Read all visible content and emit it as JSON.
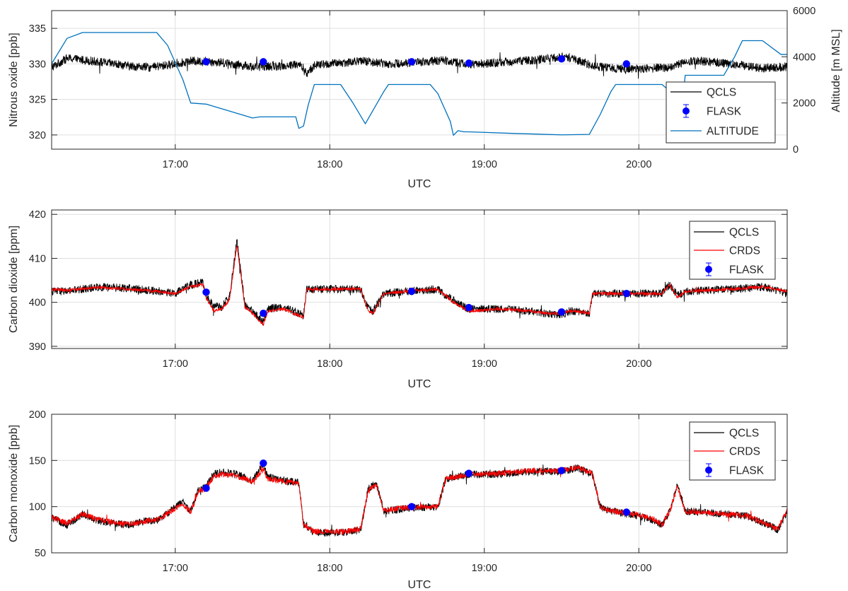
{
  "chart_data": [
    {
      "type": "line",
      "xlabel": "UTC",
      "ylabel": "Nitrous oxide [ppb]",
      "y2label": "Altitude [m MSL]",
      "xlim": [
        16.2,
        20.96
      ],
      "ylim": [
        318,
        337.5
      ],
      "y2lim": [
        0,
        6000
      ],
      "xticks": [
        "17:00",
        "18:00",
        "19:00",
        "20:00"
      ],
      "yticks": [
        "320",
        "325",
        "330",
        "335"
      ],
      "y2ticks": [
        "0",
        "2000",
        "4000",
        "6000"
      ],
      "grid": true,
      "legend": "bottom-right",
      "legend_entries": [
        "QCLS",
        "FLASK",
        "ALTITUDE"
      ],
      "series": [
        {
          "name": "QCLS",
          "color": "#000000",
          "noise": 0.6,
          "x": [
            16.2,
            16.3,
            16.5,
            16.7,
            16.85,
            17.0,
            17.1,
            17.2,
            17.3,
            17.5,
            17.7,
            17.8,
            17.85,
            17.9,
            18.0,
            18.2,
            18.4,
            18.6,
            18.75,
            18.9,
            19.1,
            19.3,
            19.5,
            19.6,
            19.7,
            19.8,
            20.0,
            20.2,
            20.3,
            20.4,
            20.6,
            20.8,
            20.96
          ],
          "y": [
            329.5,
            330.8,
            330.3,
            329.7,
            329.5,
            330.0,
            330.4,
            330.3,
            330.2,
            329.6,
            329.7,
            330.0,
            328.6,
            329.8,
            330.0,
            330.4,
            330.0,
            330.3,
            330.5,
            329.9,
            330.2,
            330.5,
            331.0,
            330.5,
            329.8,
            329.4,
            329.3,
            329.5,
            330.3,
            330.4,
            330.0,
            329.4,
            329.6
          ]
        },
        {
          "name": "ALTITUDE",
          "color": "#0072bd",
          "axis": "right",
          "x": [
            16.2,
            16.3,
            16.4,
            16.88,
            16.95,
            17.05,
            17.1,
            17.2,
            17.5,
            17.55,
            17.78,
            17.8,
            17.83,
            17.86,
            17.9,
            18.07,
            18.15,
            18.23,
            18.35,
            18.38,
            18.65,
            18.7,
            18.78,
            18.8,
            18.83,
            18.87,
            18.9,
            19.2,
            19.5,
            19.68,
            19.75,
            19.82,
            19.85,
            20.15,
            20.22,
            20.28,
            20.3,
            20.55,
            20.62,
            20.67,
            20.8,
            20.92,
            20.96
          ],
          "y": [
            3700,
            4800,
            5050,
            5050,
            4500,
            3000,
            2000,
            1950,
            1350,
            1400,
            1400,
            900,
            1000,
            1900,
            2800,
            2800,
            2000,
            1100,
            2500,
            2800,
            2800,
            2400,
            1200,
            600,
            800,
            750,
            750,
            680,
            620,
            640,
            1500,
            2500,
            2800,
            2800,
            2400,
            1800,
            3200,
            3200,
            4000,
            4700,
            4700,
            4100,
            4100
          ]
        },
        {
          "name": "FLASK",
          "color": "#0000ff",
          "marker": "circle",
          "x": [
            17.2,
            17.57,
            18.53,
            18.9,
            19.5,
            19.92
          ],
          "y": [
            330.3,
            330.3,
            330.3,
            330.1,
            330.7,
            330.0
          ]
        }
      ]
    },
    {
      "type": "line",
      "xlabel": "UTC",
      "ylabel": "Carbon dioxide [ppm]",
      "xlim": [
        16.2,
        20.96
      ],
      "ylim": [
        389.5,
        421
      ],
      "xticks": [
        "17:00",
        "18:00",
        "19:00",
        "20:00"
      ],
      "yticks": [
        "390",
        "400",
        "410",
        "420"
      ],
      "grid": true,
      "legend": "top-right",
      "legend_entries": [
        "QCLS",
        "CRDS",
        "FLASK"
      ],
      "series": [
        {
          "name": "QCLS",
          "color": "#000000",
          "noise": 0.9,
          "x": [
            16.2,
            16.3,
            16.5,
            16.7,
            16.9,
            17.0,
            17.1,
            17.18,
            17.2,
            17.25,
            17.3,
            17.35,
            17.4,
            17.45,
            17.5,
            17.57,
            17.6,
            17.7,
            17.8,
            17.83,
            17.85,
            18.0,
            18.2,
            18.25,
            18.28,
            18.35,
            18.5,
            18.7,
            18.75,
            18.8,
            18.85,
            18.9,
            19.1,
            19.3,
            19.4,
            19.5,
            19.55,
            19.6,
            19.68,
            19.7,
            19.8,
            20.0,
            20.15,
            20.2,
            20.25,
            20.3,
            20.6,
            20.8,
            20.96
          ],
          "y": [
            402.5,
            402.5,
            403.5,
            403.2,
            402.5,
            402.0,
            404.0,
            404.5,
            401.5,
            399.0,
            399.0,
            401.0,
            414.0,
            399.5,
            398.0,
            395.5,
            398.5,
            399.0,
            397.5,
            397.0,
            403.0,
            403.0,
            403.0,
            398.5,
            398.0,
            402.0,
            402.5,
            403.0,
            401.5,
            400.5,
            399.5,
            398.5,
            398.5,
            398.0,
            397.5,
            397.0,
            398.0,
            398.0,
            397.5,
            402.0,
            402.0,
            402.0,
            402.0,
            404.0,
            401.5,
            402.5,
            403.0,
            403.5,
            402.0
          ]
        },
        {
          "name": "CRDS",
          "color": "#ff0000",
          "noise": 0.35,
          "x": [
            16.2,
            16.3,
            16.5,
            16.7,
            16.9,
            17.0,
            17.1,
            17.18,
            17.2,
            17.25,
            17.3,
            17.35,
            17.4,
            17.45,
            17.5,
            17.57,
            17.6,
            17.7,
            17.8,
            17.83,
            17.85,
            18.0,
            18.2,
            18.25,
            18.28,
            18.35,
            18.5,
            18.7,
            18.75,
            18.8,
            18.85,
            18.9,
            19.1,
            19.3,
            19.4,
            19.5,
            19.55,
            19.6,
            19.68,
            19.7,
            19.8,
            20.0,
            20.15,
            20.2,
            20.25,
            20.3,
            20.6,
            20.8,
            20.96
          ],
          "y": [
            403.0,
            402.8,
            403.4,
            403.0,
            402.4,
            402.0,
            403.6,
            404.0,
            401.0,
            398.0,
            398.5,
            400.5,
            413.0,
            399.0,
            397.5,
            395.0,
            398.0,
            398.5,
            397.0,
            396.5,
            403.0,
            403.0,
            403.0,
            398.0,
            397.5,
            402.0,
            402.5,
            403.0,
            401.5,
            400.0,
            399.0,
            398.0,
            398.5,
            398.0,
            397.5,
            397.5,
            398.0,
            398.0,
            397.5,
            402.0,
            402.0,
            402.0,
            402.0,
            404.0,
            401.0,
            402.5,
            403.0,
            403.5,
            402.5
          ]
        },
        {
          "name": "FLASK",
          "color": "#0000ff",
          "marker": "circle",
          "x": [
            17.2,
            17.57,
            18.53,
            18.9,
            19.5,
            19.92
          ],
          "y": [
            402.3,
            397.5,
            402.5,
            398.8,
            397.8,
            402.0
          ]
        }
      ]
    },
    {
      "type": "line",
      "xlabel": "UTC",
      "ylabel": "Carbon monoxide [ppb]",
      "xlim": [
        16.2,
        20.96
      ],
      "ylim": [
        50,
        200
      ],
      "xticks": [
        "17:00",
        "18:00",
        "19:00",
        "20:00"
      ],
      "yticks": [
        "50",
        "100",
        "150",
        "200"
      ],
      "grid": true,
      "legend": "top-right",
      "legend_entries": [
        "QCLS",
        "CRDS",
        "FLASK"
      ],
      "series": [
        {
          "name": "QCLS",
          "color": "#000000",
          "noise": 4,
          "x": [
            16.2,
            16.3,
            16.4,
            16.5,
            16.6,
            16.7,
            16.8,
            16.9,
            17.0,
            17.05,
            17.1,
            17.15,
            17.2,
            17.25,
            17.3,
            17.4,
            17.5,
            17.57,
            17.6,
            17.7,
            17.8,
            17.83,
            17.9,
            18.0,
            18.1,
            18.2,
            18.25,
            18.3,
            18.35,
            18.5,
            18.7,
            18.75,
            18.9,
            19.1,
            19.3,
            19.5,
            19.6,
            19.7,
            19.75,
            19.8,
            20.0,
            20.1,
            20.15,
            20.2,
            20.25,
            20.3,
            20.5,
            20.7,
            20.8,
            20.9,
            20.96
          ],
          "y": [
            88,
            80,
            92,
            85,
            82,
            80,
            84,
            86,
            100,
            105,
            95,
            118,
            122,
            135,
            138,
            135,
            128,
            147,
            132,
            128,
            126,
            80,
            72,
            72,
            72,
            75,
            120,
            125,
            95,
            98,
            100,
            130,
            135,
            135,
            138,
            138,
            142,
            135,
            100,
            96,
            90,
            85,
            80,
            95,
            125,
            95,
            93,
            90,
            83,
            75,
            95
          ]
        },
        {
          "name": "CRDS",
          "color": "#ff0000",
          "noise": 3,
          "x": [
            16.2,
            16.3,
            16.4,
            16.5,
            16.6,
            16.7,
            16.8,
            16.9,
            17.0,
            17.05,
            17.1,
            17.15,
            17.2,
            17.25,
            17.3,
            17.4,
            17.5,
            17.57,
            17.6,
            17.7,
            17.8,
            17.83,
            17.9,
            18.0,
            18.1,
            18.2,
            18.25,
            18.3,
            18.35,
            18.5,
            18.7,
            18.75,
            18.9,
            19.1,
            19.3,
            19.5,
            19.6,
            19.7,
            19.75,
            19.8,
            20.0,
            20.1,
            20.15,
            20.2,
            20.25,
            20.3,
            20.5,
            20.7,
            20.8,
            20.9,
            20.96
          ],
          "y": [
            89,
            82,
            92,
            86,
            83,
            81,
            84,
            87,
            98,
            103,
            94,
            116,
            120,
            133,
            135,
            133,
            127,
            140,
            130,
            127,
            125,
            80,
            73,
            73,
            73,
            76,
            118,
            123,
            96,
            99,
            100,
            130,
            135,
            136,
            139,
            139,
            143,
            136,
            100,
            96,
            91,
            86,
            80,
            95,
            122,
            95,
            93,
            90,
            83,
            76,
            96
          ]
        },
        {
          "name": "FLASK",
          "color": "#0000ff",
          "marker": "circle",
          "x": [
            17.2,
            17.57,
            18.53,
            18.9,
            19.5,
            19.92
          ],
          "y": [
            120,
            147,
            100,
            136,
            139,
            94
          ]
        }
      ]
    }
  ]
}
